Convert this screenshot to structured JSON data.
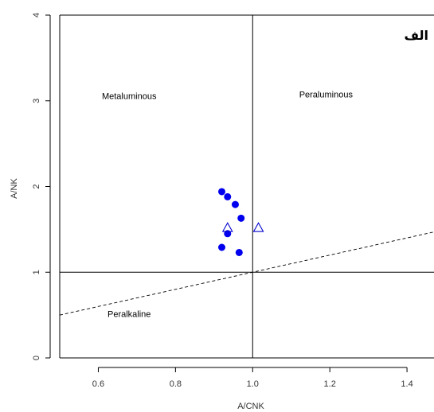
{
  "chart_data": {
    "type": "scatter",
    "panel_label": "الف",
    "xlabel": "A/CNK",
    "ylabel": "A/NK",
    "xlim": [
      0.5,
      1.47
    ],
    "ylim": [
      0,
      4
    ],
    "x_ticks": [
      0.6,
      0.8,
      1.0,
      1.2,
      1.4
    ],
    "x_tick_labels": [
      "0.6",
      "0.8",
      "1.0",
      "1.2",
      "1.4"
    ],
    "y_ticks": [
      0,
      1,
      2,
      3,
      4
    ],
    "y_tick_labels": [
      "0",
      "1",
      "2",
      "3",
      "4"
    ],
    "grid": false,
    "region_labels": [
      {
        "text": "Metaluminous",
        "x": 0.68,
        "y": 3.02
      },
      {
        "text": "Peraluminous",
        "x": 1.19,
        "y": 3.04
      },
      {
        "text": "Peralkaline",
        "x": 0.68,
        "y": 0.48
      }
    ],
    "reference_lines": [
      {
        "name": "vertical",
        "style": "solid",
        "x": [
          1.0,
          1.0
        ],
        "y": [
          0,
          4
        ]
      },
      {
        "name": "horizontal",
        "style": "solid",
        "x": [
          0.5,
          1.47
        ],
        "y": [
          1,
          1
        ]
      },
      {
        "name": "dashed",
        "style": "dashed",
        "x": [
          0.5,
          1.47
        ],
        "y": [
          0.5,
          1.47
        ]
      }
    ],
    "series": [
      {
        "marker": "filled-circle",
        "color": "#0000ee",
        "x": [
          0.92,
          0.935,
          0.955,
          0.97,
          0.935,
          0.92,
          0.965
        ],
        "y": [
          1.94,
          1.88,
          1.79,
          1.63,
          1.45,
          1.29,
          1.23
        ]
      },
      {
        "marker": "open-triangle",
        "color": "#0000cc",
        "x": [
          0.935,
          1.015
        ],
        "y": [
          1.52,
          1.52
        ]
      }
    ]
  }
}
